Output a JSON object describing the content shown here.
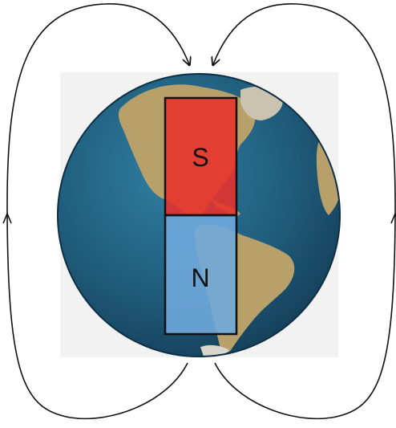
{
  "labels": {
    "south_pole": "S",
    "north_pole": "N"
  },
  "colors": {
    "background_square": "#f2f2f2",
    "ocean": "#1f5a79",
    "land": "#b8a06a",
    "south_half": "#e8302a",
    "north_half": "#6fa8dc",
    "field_lines": "#111111"
  },
  "icons": {
    "globe": "earth-globe-americas",
    "field_line_arrows": "arrowhead"
  }
}
